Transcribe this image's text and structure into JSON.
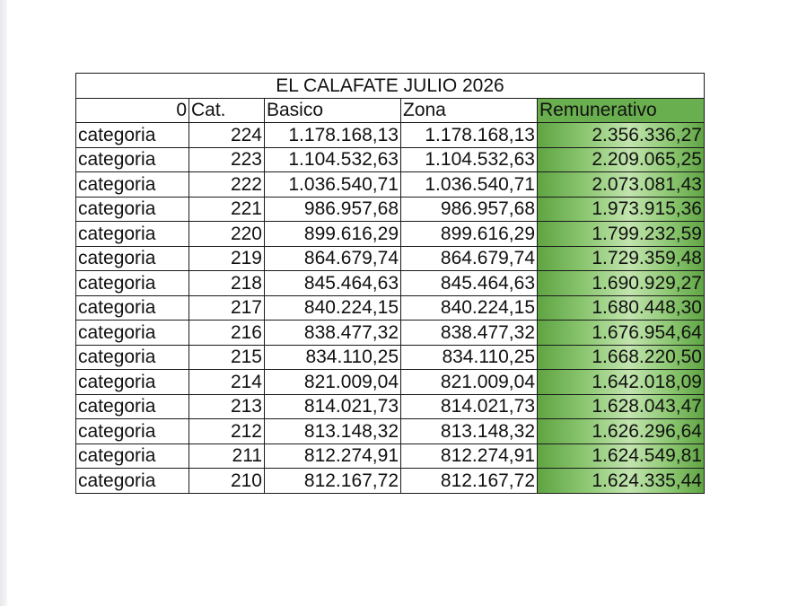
{
  "table": {
    "title": "EL CALAFATE   JULIO 2026",
    "header": {
      "col1": "0",
      "col2": "Cat.",
      "col3": "Basico",
      "col4": "Zona",
      "col5": "Remunerativo"
    },
    "rows": [
      {
        "label": "categoria",
        "cat": "224",
        "basico": "1.178.168,13",
        "zona": "1.178.168,13",
        "remunerativo": "2.356.336,27"
      },
      {
        "label": "categoria",
        "cat": "223",
        "basico": "1.104.532,63",
        "zona": "1.104.532,63",
        "remunerativo": "2.209.065,25"
      },
      {
        "label": "categoria",
        "cat": "222",
        "basico": "1.036.540,71",
        "zona": "1.036.540,71",
        "remunerativo": "2.073.081,43"
      },
      {
        "label": "categoria",
        "cat": "221",
        "basico": "986.957,68",
        "zona": "986.957,68",
        "remunerativo": "1.973.915,36"
      },
      {
        "label": "categoria",
        "cat": "220",
        "basico": "899.616,29",
        "zona": "899.616,29",
        "remunerativo": "1.799.232,59"
      },
      {
        "label": "categoria",
        "cat": "219",
        "basico": "864.679,74",
        "zona": "864.679,74",
        "remunerativo": "1.729.359,48"
      },
      {
        "label": "categoria",
        "cat": "218",
        "basico": "845.464,63",
        "zona": "845.464,63",
        "remunerativo": "1.690.929,27"
      },
      {
        "label": "categoria",
        "cat": "217",
        "basico": "840.224,15",
        "zona": "840.224,15",
        "remunerativo": "1.680.448,30"
      },
      {
        "label": "categoria",
        "cat": "216",
        "basico": "838.477,32",
        "zona": "838.477,32",
        "remunerativo": "1.676.954,64"
      },
      {
        "label": "categoria",
        "cat": "215",
        "basico": "834.110,25",
        "zona": "834.110,25",
        "remunerativo": "1.668.220,50"
      },
      {
        "label": "categoria",
        "cat": "214",
        "basico": "821.009,04",
        "zona": "821.009,04",
        "remunerativo": "1.642.018,09"
      },
      {
        "label": "categoria",
        "cat": "213",
        "basico": "814.021,73",
        "zona": "814.021,73",
        "remunerativo": "1.628.043,47"
      },
      {
        "label": "categoria",
        "cat": "212",
        "basico": "813.148,32",
        "zona": "813.148,32",
        "remunerativo": "1.626.296,64"
      },
      {
        "label": "categoria",
        "cat": "211",
        "basico": "812.274,91",
        "zona": "812.274,91",
        "remunerativo": "1.624.549,81"
      },
      {
        "label": "categoria",
        "cat": "210",
        "basico": "812.167,72",
        "zona": "812.167,72",
        "remunerativo": "1.624.335,44"
      }
    ]
  },
  "colors": {
    "highlight_column": "#6aaf4f",
    "border": "#1a1a1a",
    "text": "#111111"
  }
}
